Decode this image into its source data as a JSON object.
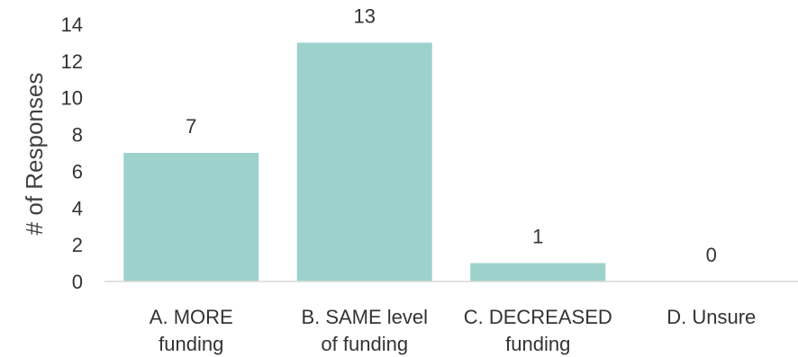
{
  "chart_data": {
    "type": "bar",
    "categories": [
      [
        "A. MORE",
        "funding"
      ],
      [
        "B. SAME level",
        "of funding"
      ],
      [
        "C. DECREASED",
        "funding"
      ],
      [
        "D. Unsure"
      ]
    ],
    "values": [
      7,
      13,
      1,
      0
    ],
    "data_labels": [
      "7",
      "13",
      "1",
      "0"
    ],
    "xlabel": "",
    "ylabel": "# of Responses",
    "ylim": [
      0,
      14
    ],
    "yticks": [
      0,
      2,
      4,
      6,
      8,
      10,
      12,
      14
    ],
    "grid": false,
    "bar_color": "#9dd1cc",
    "axis_color": "#d9d9d9"
  }
}
